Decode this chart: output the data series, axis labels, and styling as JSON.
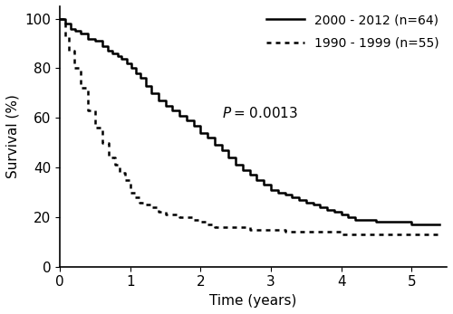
{
  "title": "",
  "xlabel": "Time (years)",
  "ylabel": "Survival (%)",
  "xlim": [
    0,
    5.5
  ],
  "ylim": [
    0,
    105
  ],
  "yticks": [
    0,
    20,
    40,
    60,
    80,
    100
  ],
  "xticks": [
    0,
    1,
    2,
    3,
    4,
    5
  ],
  "p_x": 2.3,
  "p_y": 62,
  "legend_labels": [
    "2000 - 2012 (n=64)",
    "1990 - 1999 (n=55)"
  ],
  "curve1_x": [
    0,
    0.08,
    0.15,
    0.22,
    0.3,
    0.4,
    0.5,
    0.6,
    0.68,
    0.75,
    0.82,
    0.88,
    0.95,
    1.02,
    1.08,
    1.15,
    1.22,
    1.3,
    1.4,
    1.5,
    1.6,
    1.7,
    1.8,
    1.9,
    2.0,
    2.1,
    2.2,
    2.3,
    2.4,
    2.5,
    2.6,
    2.7,
    2.8,
    2.9,
    3.0,
    3.1,
    3.2,
    3.3,
    3.4,
    3.5,
    3.6,
    3.7,
    3.8,
    3.9,
    4.0,
    4.1,
    4.2,
    4.5,
    5.0,
    5.4
  ],
  "curve1_y": [
    100,
    98,
    96,
    95,
    94,
    92,
    91,
    89,
    87,
    86,
    85,
    84,
    82,
    80,
    78,
    76,
    73,
    70,
    67,
    65,
    63,
    61,
    59,
    57,
    54,
    52,
    49,
    47,
    44,
    41,
    39,
    37,
    35,
    33,
    31,
    30,
    29,
    28,
    27,
    26,
    25,
    24,
    23,
    22,
    21,
    20,
    19,
    18,
    17,
    17
  ],
  "curve2_x": [
    0,
    0.07,
    0.13,
    0.2,
    0.3,
    0.4,
    0.5,
    0.6,
    0.7,
    0.78,
    0.85,
    0.92,
    1.0,
    1.07,
    1.13,
    1.2,
    1.3,
    1.4,
    1.5,
    1.6,
    1.7,
    1.8,
    1.9,
    2.0,
    2.1,
    2.2,
    2.5,
    2.7,
    3.0,
    3.2,
    3.5,
    3.8,
    4.0,
    4.5,
    5.4
  ],
  "curve2_y": [
    100,
    93,
    87,
    80,
    72,
    63,
    56,
    50,
    44,
    41,
    38,
    35,
    30,
    28,
    26,
    25,
    24,
    22,
    21,
    21,
    20,
    20,
    19,
    18,
    17,
    16,
    16,
    15,
    15,
    14,
    14,
    14,
    13,
    13,
    13
  ],
  "line_color": "#000000",
  "background_color": "#ffffff",
  "fontsize": 11,
  "legend_fontsize": 10
}
